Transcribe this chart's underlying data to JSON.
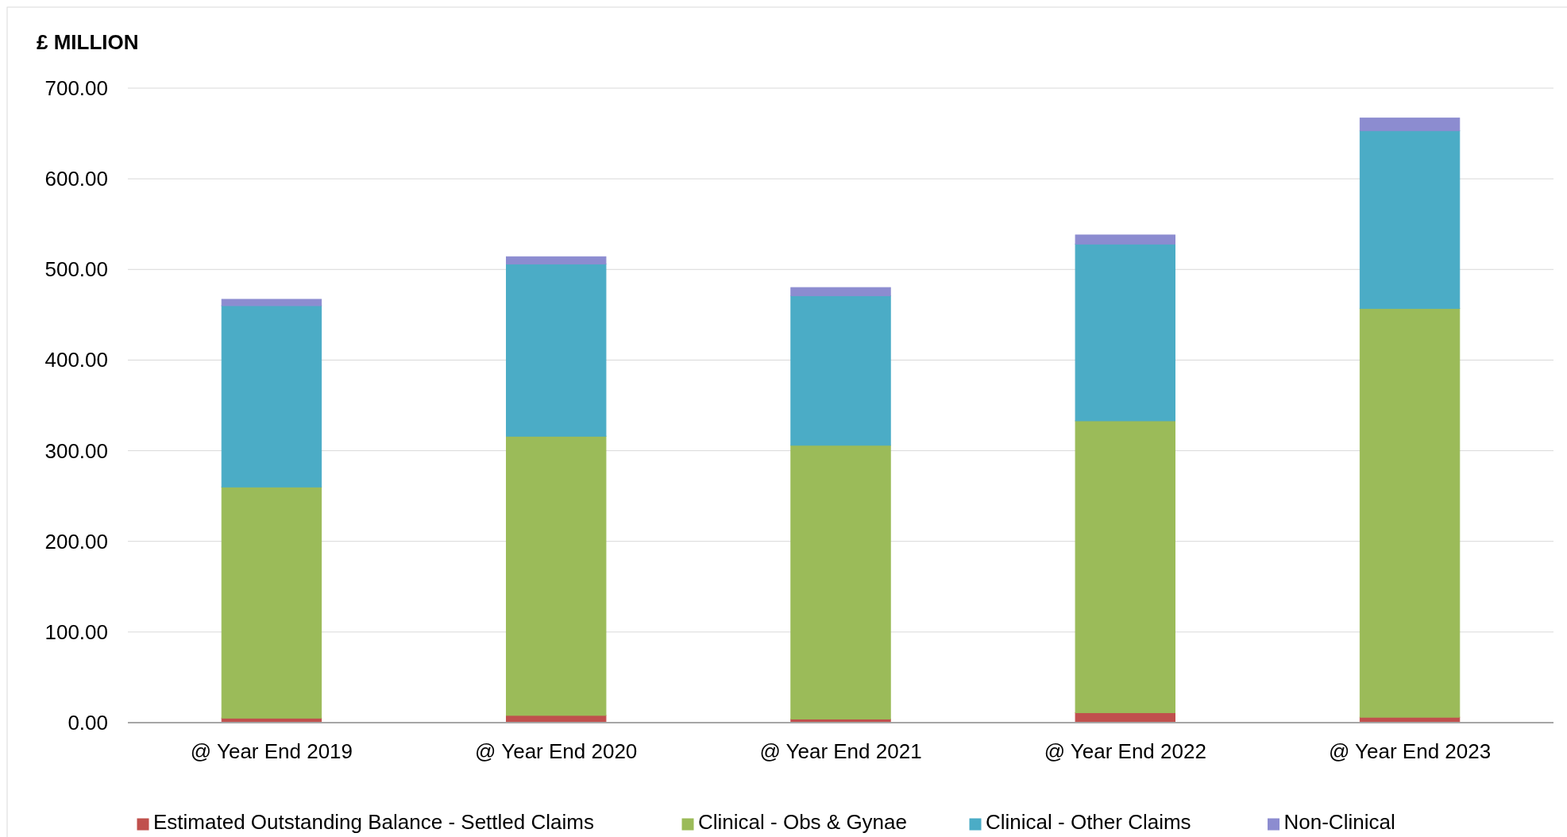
{
  "chart_data": {
    "type": "bar",
    "stacked": true,
    "ylabel": "£ MILLION",
    "categories": [
      "@ Year End 2019",
      "@ Year End 2020",
      "@ Year End 2021",
      "@ Year End 2022",
      "@ Year End 2023"
    ],
    "series": [
      {
        "name": "Estimated Outstanding Balance - Settled Claims",
        "color": "#c0504d",
        "values": [
          5,
          8,
          4,
          11,
          6
        ]
      },
      {
        "name": "Clinical - Obs & Gynae",
        "color": "#9bbb59",
        "values": [
          255,
          308,
          302,
          322,
          451
        ]
      },
      {
        "name": "Clinical - Other Claims",
        "color": "#4bacc6",
        "values": [
          200,
          190,
          165,
          195,
          196
        ]
      },
      {
        "name": "Non-Clinical",
        "color": "#8c8cd0",
        "values": [
          7,
          8,
          9,
          10,
          14
        ]
      }
    ],
    "ylim": [
      0,
      700
    ],
    "yticks": [
      {
        "value": 0,
        "label": "0.00"
      },
      {
        "value": 100,
        "label": "100.00"
      },
      {
        "value": 200,
        "label": "200.00"
      },
      {
        "value": 300,
        "label": "300.00"
      },
      {
        "value": 400,
        "label": "400.00"
      },
      {
        "value": 500,
        "label": "500.00"
      },
      {
        "value": 600,
        "label": "600.00"
      },
      {
        "value": 700,
        "label": "700.00"
      }
    ],
    "grid": "y",
    "legend": "bottom"
  }
}
